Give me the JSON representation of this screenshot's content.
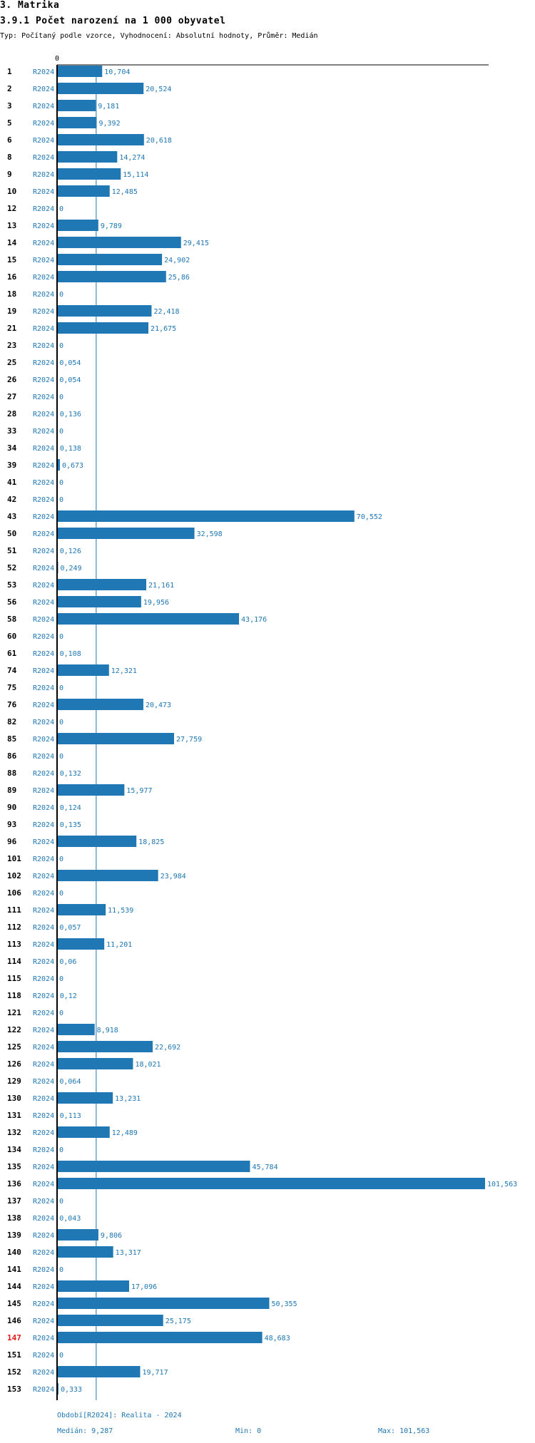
{
  "header": {
    "title": "3. Matrika",
    "subtitle": "3.9.1 Počet narození na 1 000 obyvatel",
    "type_line": "Typ: Počítaný podle vzorce, Vyhodnocení: Absolutní hodnoty, Průměr: Medián"
  },
  "colors": {
    "bar": "#1f77b4",
    "highlight": "#e31a1c",
    "axis": "#000000",
    "median_line": "#1f77b4"
  },
  "chart_data": {
    "type": "bar",
    "orientation": "horizontal",
    "axis_zero_label": "0",
    "series_label": "R2024",
    "highlight_category": "147",
    "median": 9.287,
    "min": 0,
    "max": 101.563,
    "rows": [
      {
        "id": "1",
        "value": 10.704,
        "label": "10,704"
      },
      {
        "id": "2",
        "value": 20.524,
        "label": "20,524"
      },
      {
        "id": "3",
        "value": 9.181,
        "label": "9,181"
      },
      {
        "id": "5",
        "value": 9.392,
        "label": "9,392"
      },
      {
        "id": "6",
        "value": 20.618,
        "label": "20,618"
      },
      {
        "id": "8",
        "value": 14.274,
        "label": "14,274"
      },
      {
        "id": "9",
        "value": 15.114,
        "label": "15,114"
      },
      {
        "id": "10",
        "value": 12.485,
        "label": "12,485"
      },
      {
        "id": "12",
        "value": 0,
        "label": "0"
      },
      {
        "id": "13",
        "value": 9.789,
        "label": "9,789"
      },
      {
        "id": "14",
        "value": 29.415,
        "label": "29,415"
      },
      {
        "id": "15",
        "value": 24.902,
        "label": "24,902"
      },
      {
        "id": "16",
        "value": 25.86,
        "label": "25,86"
      },
      {
        "id": "18",
        "value": 0,
        "label": "0"
      },
      {
        "id": "19",
        "value": 22.418,
        "label": "22,418"
      },
      {
        "id": "21",
        "value": 21.675,
        "label": "21,675"
      },
      {
        "id": "23",
        "value": 0,
        "label": "0"
      },
      {
        "id": "25",
        "value": 0.054,
        "label": "0,054"
      },
      {
        "id": "26",
        "value": 0.054,
        "label": "0,054"
      },
      {
        "id": "27",
        "value": 0,
        "label": "0"
      },
      {
        "id": "28",
        "value": 0.136,
        "label": "0,136"
      },
      {
        "id": "33",
        "value": 0,
        "label": "0"
      },
      {
        "id": "34",
        "value": 0.138,
        "label": "0,138"
      },
      {
        "id": "39",
        "value": 0.673,
        "label": "0,673"
      },
      {
        "id": "41",
        "value": 0,
        "label": "0"
      },
      {
        "id": "42",
        "value": 0,
        "label": "0"
      },
      {
        "id": "43",
        "value": 70.552,
        "label": "70,552"
      },
      {
        "id": "50",
        "value": 32.598,
        "label": "32,598"
      },
      {
        "id": "51",
        "value": 0.126,
        "label": "0,126"
      },
      {
        "id": "52",
        "value": 0.249,
        "label": "0,249"
      },
      {
        "id": "53",
        "value": 21.161,
        "label": "21,161"
      },
      {
        "id": "56",
        "value": 19.956,
        "label": "19,956"
      },
      {
        "id": "58",
        "value": 43.176,
        "label": "43,176"
      },
      {
        "id": "60",
        "value": 0,
        "label": "0"
      },
      {
        "id": "61",
        "value": 0.108,
        "label": "0,108"
      },
      {
        "id": "74",
        "value": 12.321,
        "label": "12,321"
      },
      {
        "id": "75",
        "value": 0,
        "label": "0"
      },
      {
        "id": "76",
        "value": 20.473,
        "label": "20,473"
      },
      {
        "id": "82",
        "value": 0,
        "label": "0"
      },
      {
        "id": "85",
        "value": 27.759,
        "label": "27,759"
      },
      {
        "id": "86",
        "value": 0,
        "label": "0"
      },
      {
        "id": "88",
        "value": 0.132,
        "label": "0,132"
      },
      {
        "id": "89",
        "value": 15.977,
        "label": "15,977"
      },
      {
        "id": "90",
        "value": 0.124,
        "label": "0,124"
      },
      {
        "id": "93",
        "value": 0.135,
        "label": "0,135"
      },
      {
        "id": "96",
        "value": 18.825,
        "label": "18,825"
      },
      {
        "id": "101",
        "value": 0,
        "label": "0"
      },
      {
        "id": "102",
        "value": 23.984,
        "label": "23,984"
      },
      {
        "id": "106",
        "value": 0,
        "label": "0"
      },
      {
        "id": "111",
        "value": 11.539,
        "label": "11,539"
      },
      {
        "id": "112",
        "value": 0.057,
        "label": "0,057"
      },
      {
        "id": "113",
        "value": 11.201,
        "label": "11,201"
      },
      {
        "id": "114",
        "value": 0.06,
        "label": "0,06"
      },
      {
        "id": "115",
        "value": 0,
        "label": "0"
      },
      {
        "id": "118",
        "value": 0.12,
        "label": "0,12"
      },
      {
        "id": "121",
        "value": 0,
        "label": "0"
      },
      {
        "id": "122",
        "value": 8.918,
        "label": "8,918"
      },
      {
        "id": "125",
        "value": 22.692,
        "label": "22,692"
      },
      {
        "id": "126",
        "value": 18.021,
        "label": "18,021"
      },
      {
        "id": "129",
        "value": 0.064,
        "label": "0,064"
      },
      {
        "id": "130",
        "value": 13.231,
        "label": "13,231"
      },
      {
        "id": "131",
        "value": 0.113,
        "label": "0,113"
      },
      {
        "id": "132",
        "value": 12.489,
        "label": "12,489"
      },
      {
        "id": "134",
        "value": 0,
        "label": "0"
      },
      {
        "id": "135",
        "value": 45.784,
        "label": "45,784"
      },
      {
        "id": "136",
        "value": 101.563,
        "label": "101,563"
      },
      {
        "id": "137",
        "value": 0,
        "label": "0"
      },
      {
        "id": "138",
        "value": 0.043,
        "label": "0,043"
      },
      {
        "id": "139",
        "value": 9.806,
        "label": "9,806"
      },
      {
        "id": "140",
        "value": 13.317,
        "label": "13,317"
      },
      {
        "id": "141",
        "value": 0,
        "label": "0"
      },
      {
        "id": "144",
        "value": 17.096,
        "label": "17,096"
      },
      {
        "id": "145",
        "value": 50.355,
        "label": "50,355"
      },
      {
        "id": "146",
        "value": 25.175,
        "label": "25,175"
      },
      {
        "id": "147",
        "value": 48.683,
        "label": "48,683"
      },
      {
        "id": "151",
        "value": 0,
        "label": "0"
      },
      {
        "id": "152",
        "value": 19.717,
        "label": "19,717"
      },
      {
        "id": "153",
        "value": 0.333,
        "label": "0,333"
      }
    ]
  },
  "footer": {
    "period": "Období[R2024]: Realita - 2024",
    "median": "Medián: 9,287",
    "min": "Min: 0",
    "max": "Max: 101,563"
  }
}
